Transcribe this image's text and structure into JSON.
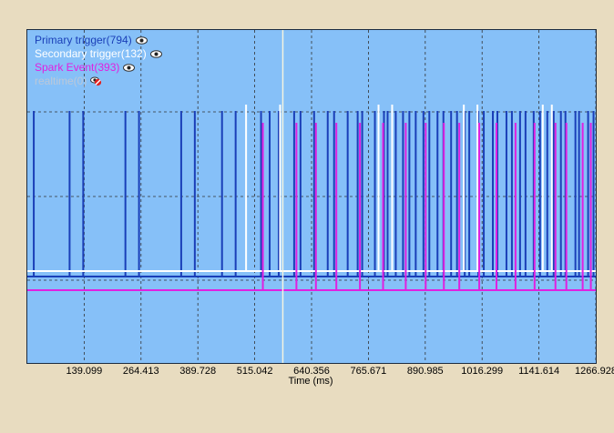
{
  "legend": [
    {
      "label": "Primary trigger(794)",
      "color": "#1a3fb8",
      "icon": "eye-icon",
      "visible": true
    },
    {
      "label": "Secondary trigger(132)",
      "color": "#ffffff",
      "icon": "eye-icon",
      "visible": true
    },
    {
      "label": "Spark Event(393)",
      "color": "#e020e0",
      "icon": "eye-icon",
      "visible": true
    },
    {
      "label": "realtime(0)",
      "color": "#bcc8d8",
      "icon": "eye-hidden-icon",
      "visible": false
    }
  ],
  "chart_data": {
    "type": "line",
    "xlabel": "Time (ms)",
    "x_ticks": [
      "139.099",
      "264.413",
      "389.728",
      "515.042",
      "640.356",
      "765.671",
      "890.985",
      "1016.299",
      "1141.614",
      "1266.928"
    ],
    "xlim": [
      13.8,
      1266.9
    ],
    "grid": true,
    "background": "#86c0f8",
    "series": [
      {
        "name": "Primary trigger",
        "color": "#1a3fb8",
        "events_ms": [
          28,
          107,
          137,
          230,
          260,
          353,
          383,
          443,
          473,
          529,
          548,
          568,
          602,
          616,
          646,
          676,
          690,
          720,
          742,
          752,
          780,
          800,
          808,
          826,
          842,
          856,
          870,
          887,
          900,
          918,
          931,
          948,
          961,
          978,
          988,
          1008,
          1020,
          1040,
          1050,
          1070,
          1082,
          1100,
          1112,
          1130,
          1144,
          1160,
          1174,
          1190,
          1200,
          1222,
          1230,
          1250,
          1262
        ]
      },
      {
        "name": "Secondary trigger",
        "color": "#ffffff",
        "events_ms": [
          496,
          571,
          788,
          818,
          976,
          1006,
          1150,
          1170
        ]
      },
      {
        "name": "Spark Event",
        "color": "#e020e0",
        "events_ms": [
          533,
          607,
          650,
          695,
          747,
          798,
          848,
          892,
          932,
          966,
          1010,
          1048,
          1090,
          1132,
          1178,
          1202,
          1238,
          1256
        ]
      }
    ]
  }
}
